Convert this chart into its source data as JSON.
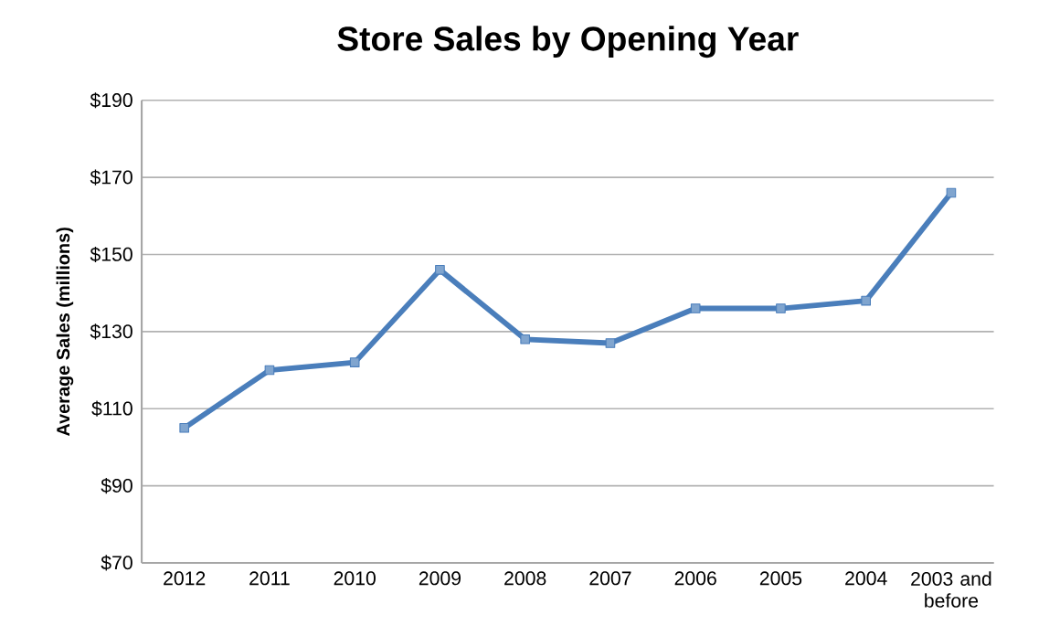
{
  "chart_data": {
    "type": "line",
    "title": "Store Sales by Opening Year",
    "ylabel": "Average Sales (millions)",
    "categories": [
      "2012",
      "2011",
      "2010",
      "2009",
      "2008",
      "2007",
      "2006",
      "2005",
      "2004",
      "2003 and before"
    ],
    "series": [
      {
        "color": "#4a7ebb",
        "values": [
          105,
          120,
          122,
          146,
          128,
          127,
          136,
          136,
          138,
          166
        ]
      }
    ],
    "ylim": [
      70,
      190
    ],
    "yticks": [
      {
        "value": 70,
        "label": "$70"
      },
      {
        "value": 90,
        "label": "$90"
      },
      {
        "value": 110,
        "label": "$110"
      },
      {
        "value": 130,
        "label": "$130"
      },
      {
        "value": 150,
        "label": "$150"
      },
      {
        "value": 170,
        "label": "$170"
      },
      {
        "value": 190,
        "label": "$190"
      }
    ],
    "grid": "y",
    "marker": "square",
    "line_style": "solid"
  }
}
